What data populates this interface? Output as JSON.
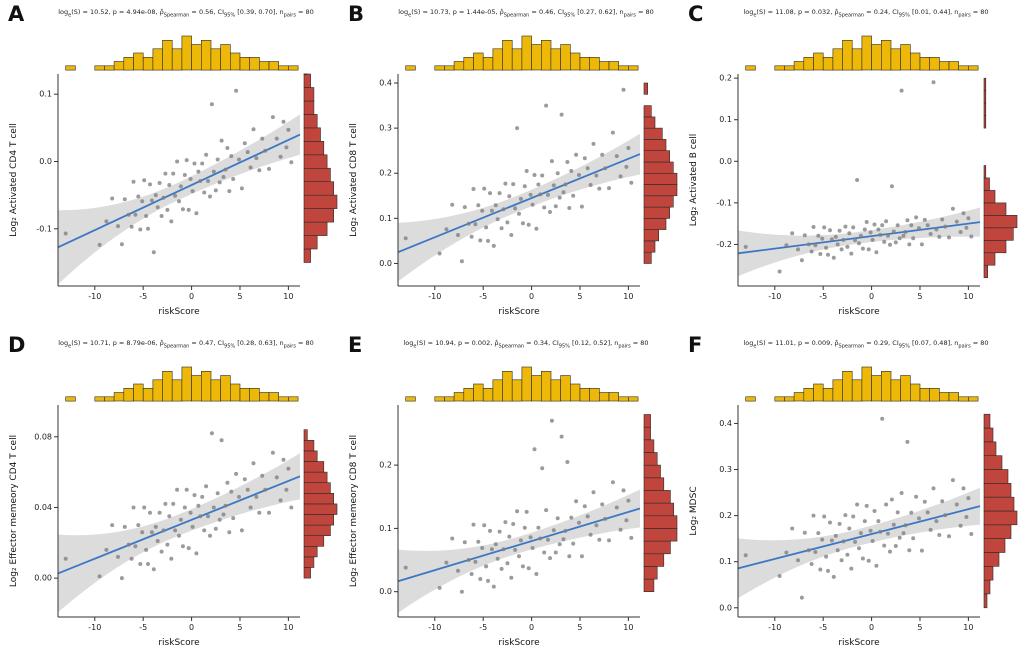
{
  "ui": {
    "stat_log": "log",
    "stat_log_sub": "e",
    "stat_s": "(S) = ",
    "stat_p": ", p = ",
    "stat_rho": ", ρ̂",
    "stat_rho_sub": "Spearman",
    "stat_eq": " = ",
    "stat_ci": ", CI",
    "stat_ci_sub": "95%",
    "stat_sp": " ",
    "stat_n": ", n",
    "stat_n_sub": "pairs",
    "stat_eq2": " = "
  },
  "colors": {
    "top_hist": "#EDB807",
    "right_hist": "#C0453C",
    "hist_stroke": "#2b2b2b",
    "point": "#7f7f7f",
    "line": "#3B78C4",
    "band": "#9a9a9a",
    "axis": "#333333"
  },
  "chart_data": {
    "type": "scatter",
    "x_label": "riskScore",
    "x_domain": [
      -13.8,
      11.2
    ],
    "x_ticks": [
      [
        -10,
        "-10"
      ],
      [
        -5,
        "-5"
      ],
      [
        0,
        "0"
      ],
      [
        5,
        "5"
      ],
      [
        10,
        "10"
      ]
    ],
    "riskScore": [
      -13.0,
      -9.5,
      -8.8,
      -8.2,
      -7.6,
      -7.2,
      -6.9,
      -6.5,
      -6.2,
      -6.0,
      -5.8,
      -5.5,
      -5.3,
      -5.1,
      -4.9,
      -4.7,
      -4.5,
      -4.3,
      -4.1,
      -3.9,
      -3.7,
      -3.5,
      -3.3,
      -3.1,
      -2.9,
      -2.7,
      -2.5,
      -2.3,
      -2.1,
      -1.9,
      -1.7,
      -1.5,
      -1.3,
      -1.1,
      -0.9,
      -0.7,
      -0.5,
      -0.3,
      -0.1,
      0.1,
      0.3,
      0.5,
      0.7,
      0.9,
      1.1,
      1.3,
      1.5,
      1.7,
      1.9,
      2.1,
      2.3,
      2.5,
      2.7,
      2.9,
      3.1,
      3.3,
      3.5,
      3.7,
      3.9,
      4.1,
      4.3,
      4.6,
      4.9,
      5.2,
      5.5,
      5.8,
      6.1,
      6.4,
      6.7,
      7.0,
      7.3,
      7.6,
      8.0,
      8.4,
      8.8,
      9.2,
      9.5,
      9.8,
      10.0,
      10.3
    ],
    "top_hist": {
      "start": -13,
      "bin_width": 1,
      "counts": [
        1,
        0,
        0,
        1,
        1,
        2,
        3,
        4,
        3,
        5,
        7,
        5,
        8,
        6,
        7,
        5,
        6,
        4,
        3,
        3,
        2,
        2,
        1,
        1
      ]
    },
    "panels": [
      {
        "letter": "A",
        "y_label": "Log₂ Activated CD4 T cell",
        "stats": {
          "logS": "10.52",
          "p": "4.94e-08",
          "rho": "0.56",
          "ci": "[0.39, 0.70]",
          "n": "80"
        },
        "y_domain": [
          -0.185,
          0.13
        ],
        "y_ticks": [
          [
            0.1,
            "0.1"
          ],
          [
            0.0,
            "0.0"
          ],
          [
            -0.1,
            "-0.1"
          ]
        ],
        "regression": {
          "intercept": -0.035,
          "slope": 0.0067
        },
        "band": {
          "center": -1.5,
          "w_mid": 0.013,
          "w_left": 0.055,
          "w_right": 0.03
        },
        "y": [
          -0.107,
          -0.124,
          -0.089,
          -0.055,
          -0.096,
          -0.123,
          -0.056,
          -0.079,
          -0.097,
          -0.03,
          -0.079,
          -0.052,
          -0.101,
          -0.059,
          -0.028,
          -0.081,
          -0.1,
          -0.034,
          -0.058,
          -0.135,
          -0.05,
          -0.068,
          -0.032,
          -0.081,
          -0.054,
          -0.018,
          -0.072,
          -0.035,
          -0.089,
          -0.018,
          -0.051,
          0.0,
          -0.059,
          -0.037,
          -0.071,
          -0.02,
          0.002,
          -0.072,
          -0.026,
          -0.044,
          -0.003,
          -0.077,
          -0.015,
          -0.029,
          -0.003,
          -0.046,
          0.01,
          -0.029,
          -0.052,
          0.085,
          -0.015,
          -0.043,
          0.003,
          -0.031,
          0.031,
          -0.023,
          -0.012,
          0.02,
          -0.044,
          0.008,
          -0.026,
          0.105,
          0.003,
          -0.04,
          0.027,
          0.014,
          -0.009,
          0.048,
          0.005,
          -0.013,
          0.034,
          0.016,
          -0.011,
          0.066,
          0.034,
          0.007,
          0.059,
          0.021,
          0.047,
          -0.001
        ],
        "right_hist": {
          "start": -0.15,
          "bin_width": 0.02,
          "counts": [
            2,
            4,
            7,
            9,
            10,
            9,
            8,
            7,
            6,
            5,
            4,
            3,
            3,
            2,
            1
          ]
        }
      },
      {
        "letter": "B",
        "y_label": "Log₂ Activated CD8 T cell",
        "stats": {
          "logS": "10.73",
          "p": "1.44e-05",
          "rho": "0.46",
          "ci": "[0.27, 0.62]",
          "n": "80"
        },
        "y_domain": [
          -0.05,
          0.42
        ],
        "y_ticks": [
          [
            0.0,
            "0.0"
          ],
          [
            0.1,
            "0.1"
          ],
          [
            0.2,
            "0.2"
          ],
          [
            0.3,
            "0.3"
          ],
          [
            0.4,
            "0.4"
          ]
        ],
        "regression": {
          "intercept": 0.145,
          "slope": 0.0087
        },
        "band": {
          "center": -1.5,
          "w_mid": 0.018,
          "w_left": 0.065,
          "w_right": 0.045
        },
        "y": [
          0.056,
          0.022,
          0.076,
          0.13,
          0.063,
          0.005,
          0.125,
          0.088,
          0.059,
          0.165,
          0.087,
          0.129,
          0.051,
          0.117,
          0.166,
          0.08,
          0.05,
          0.156,
          0.117,
          0.039,
          0.129,
          0.098,
          0.156,
          0.078,
          0.12,
          0.177,
          0.091,
          0.149,
          0.063,
          0.176,
          0.122,
          0.3,
          0.11,
          0.143,
          0.089,
          0.171,
          0.205,
          0.086,
          0.152,
          0.13,
          0.196,
          0.077,
          0.175,
          0.153,
          0.195,
          0.124,
          0.35,
          0.152,
          0.114,
          0.227,
          0.173,
          0.127,
          0.2,
          0.146,
          0.33,
          0.158,
          0.175,
          0.225,
          0.123,
          0.205,
          0.15,
          0.241,
          0.196,
          0.126,
          0.233,
          0.211,
          0.174,
          0.265,
          0.195,
          0.166,
          0.241,
          0.211,
          0.167,
          0.29,
          0.238,
          0.193,
          0.385,
          0.214,
          0.256,
          0.179
        ],
        "right_hist": {
          "start": 0.0,
          "bin_width": 0.025,
          "counts": [
            2,
            3,
            4,
            6,
            7,
            8,
            9,
            9,
            8,
            7,
            6,
            5,
            3,
            2,
            0,
            1
          ]
        }
      },
      {
        "letter": "C",
        "y_label": "Log₂ Activated B cell",
        "stats": {
          "logS": "11.08",
          "p": "0.032",
          "rho": "0.24",
          "ci": "[0.01, 0.44]",
          "n": "80"
        },
        "y_domain": [
          -0.3,
          0.21
        ],
        "y_ticks": [
          [
            0.2,
            "0.2"
          ],
          [
            0.1,
            "0.1"
          ],
          [
            0.0,
            "0.0"
          ],
          [
            -0.1,
            "-0.1"
          ],
          [
            -0.2,
            "-0.2"
          ]
        ],
        "regression": {
          "intercept": -0.18,
          "slope": 0.003
        },
        "band": {
          "center": -1.5,
          "w_mid": 0.014,
          "w_left": 0.055,
          "w_right": 0.035
        },
        "y": [
          -0.206,
          -0.265,
          -0.202,
          -0.173,
          -0.212,
          -0.238,
          -0.178,
          -0.2,
          -0.217,
          -0.158,
          -0.202,
          -0.179,
          -0.223,
          -0.186,
          -0.159,
          -0.208,
          -0.225,
          -0.166,
          -0.188,
          -0.232,
          -0.182,
          -0.2,
          -0.167,
          -0.212,
          -0.189,
          -0.157,
          -0.206,
          -0.173,
          -0.222,
          -0.159,
          -0.19,
          -0.045,
          -0.197,
          -0.179,
          -0.21,
          -0.164,
          -0.146,
          -0.212,
          -0.171,
          -0.189,
          -0.152,
          -0.219,
          -0.164,
          -0.177,
          -0.154,
          -0.194,
          -0.144,
          -0.179,
          -0.201,
          -0.06,
          -0.169,
          -0.195,
          -0.154,
          -0.185,
          0.17,
          -0.179,
          -0.17,
          -0.142,
          -0.2,
          -0.154,
          -0.185,
          -0.135,
          -0.161,
          -0.2,
          -0.141,
          -0.154,
          -0.175,
          0.19,
          -0.164,
          -0.182,
          -0.14,
          -0.157,
          -0.183,
          -0.114,
          -0.145,
          -0.17,
          -0.125,
          -0.16,
          -0.137,
          -0.181
        ],
        "right_hist": {
          "start": -0.28,
          "bin_width": 0.03,
          "counts": [
            2,
            6,
            12,
            16,
            18,
            12,
            6,
            3,
            1,
            0,
            0,
            0,
            1,
            1,
            1,
            1
          ]
        }
      },
      {
        "letter": "D",
        "y_label": "Log₂ Effector memeory CD4 T cell",
        "stats": {
          "logS": "10.71",
          "p": "8.79e-06",
          "rho": "0.47",
          "ci": "[0.28, 0.63]",
          "n": "80"
        },
        "y_domain": [
          -0.022,
          0.098
        ],
        "y_ticks": [
          [
            0.0,
            "0.00"
          ],
          [
            0.04,
            "0.04"
          ],
          [
            0.08,
            "0.08"
          ]
        ],
        "regression": {
          "intercept": 0.033,
          "slope": 0.0022
        },
        "band": {
          "center": -1.5,
          "w_mid": 0.006,
          "w_left": 0.022,
          "w_right": 0.013
        },
        "y": [
          0.011,
          0.001,
          0.016,
          0.03,
          0.012,
          0.0,
          0.029,
          0.019,
          0.011,
          0.04,
          0.018,
          0.03,
          0.008,
          0.026,
          0.04,
          0.016,
          0.008,
          0.037,
          0.026,
          0.005,
          0.029,
          0.021,
          0.037,
          0.015,
          0.027,
          0.042,
          0.019,
          0.035,
          0.011,
          0.042,
          0.027,
          0.05,
          0.024,
          0.033,
          0.018,
          0.04,
          0.05,
          0.017,
          0.037,
          0.029,
          0.047,
          0.014,
          0.041,
          0.035,
          0.046,
          0.027,
          0.052,
          0.035,
          0.024,
          0.082,
          0.04,
          0.028,
          0.048,
          0.033,
          0.078,
          0.036,
          0.041,
          0.054,
          0.026,
          0.049,
          0.034,
          0.059,
          0.046,
          0.027,
          0.056,
          0.05,
          0.04,
          0.065,
          0.046,
          0.037,
          0.058,
          0.05,
          0.037,
          0.071,
          0.057,
          0.044,
          0.067,
          0.05,
          0.062,
          0.04
        ],
        "right_hist": {
          "start": 0.0,
          "bin_width": 0.006,
          "counts": [
            2,
            3,
            4,
            6,
            8,
            9,
            10,
            9,
            8,
            7,
            6,
            4,
            3,
            1
          ]
        }
      },
      {
        "letter": "E",
        "y_label": "Log₂ Effector memeory CD8 T cell",
        "stats": {
          "logS": "10.94",
          "p": "0.002",
          "rho": "0.34",
          "ci": "[0.12, 0.52]",
          "n": "80"
        },
        "y_domain": [
          -0.04,
          0.295
        ],
        "y_ticks": [
          [
            0.0,
            "0.0"
          ],
          [
            0.1,
            "0.1"
          ],
          [
            0.2,
            "0.2"
          ]
        ],
        "regression": {
          "intercept": 0.08,
          "slope": 0.0046
        },
        "band": {
          "center": -1.5,
          "w_mid": 0.013,
          "w_left": 0.05,
          "w_right": 0.03
        },
        "y": [
          0.038,
          0.006,
          0.046,
          0.084,
          0.033,
          0.0,
          0.078,
          0.05,
          0.028,
          0.106,
          0.047,
          0.079,
          0.02,
          0.069,
          0.105,
          0.04,
          0.017,
          0.096,
          0.067,
          0.008,
          0.075,
          0.052,
          0.095,
          0.036,
          0.067,
          0.11,
          0.045,
          0.087,
          0.022,
          0.107,
          0.066,
          0.127,
          0.056,
          0.081,
          0.04,
          0.101,
          0.126,
          0.037,
          0.086,
          0.069,
          0.225,
          0.028,
          0.101,
          0.084,
          0.195,
          0.062,
          0.129,
          0.082,
          0.053,
          0.27,
          0.097,
          0.062,
          0.116,
          0.075,
          0.245,
          0.083,
          0.096,
          0.205,
          0.056,
          0.117,
          0.076,
          0.143,
          0.109,
          0.056,
          0.135,
          0.119,
          0.09,
          0.157,
          0.105,
          0.082,
          0.138,
          0.115,
          0.081,
          0.173,
          0.133,
          0.098,
          0.16,
          0.113,
          0.144,
          0.085
        ],
        "right_hist": {
          "start": 0.0,
          "bin_width": 0.02,
          "counts": [
            3,
            4,
            6,
            8,
            10,
            10,
            9,
            8,
            6,
            5,
            4,
            3,
            2,
            2
          ]
        }
      },
      {
        "letter": "F",
        "y_label": "Log₂ MDSC",
        "stats": {
          "logS": "11.01",
          "p": "0.009",
          "rho": "0.29",
          "ci": "[0.07, 0.48]",
          "n": "80"
        },
        "y_domain": [
          -0.02,
          0.44
        ],
        "y_ticks": [
          [
            0.0,
            "0.0"
          ],
          [
            0.1,
            "0.1"
          ],
          [
            0.2,
            "0.2"
          ],
          [
            0.3,
            "0.3"
          ],
          [
            0.4,
            "0.4"
          ]
        ],
        "regression": {
          "intercept": 0.16,
          "slope": 0.0054
        },
        "band": {
          "center": -1.5,
          "w_mid": 0.018,
          "w_left": 0.065,
          "w_right": 0.04
        },
        "y": [
          0.114,
          0.069,
          0.12,
          0.172,
          0.103,
          0.022,
          0.163,
          0.125,
          0.095,
          0.2,
          0.121,
          0.162,
          0.083,
          0.148,
          0.198,
          0.111,
          0.08,
          0.185,
          0.146,
          0.067,
          0.156,
          0.125,
          0.182,
          0.103,
          0.144,
          0.201,
          0.115,
          0.172,
          0.085,
          0.198,
          0.143,
          0.224,
          0.129,
          0.162,
          0.107,
          0.188,
          0.221,
          0.102,
          0.167,
          0.145,
          0.21,
          0.091,
          0.188,
          0.165,
          0.41,
          0.135,
          0.224,
          0.161,
          0.122,
          0.235,
          0.18,
          0.134,
          0.207,
          0.152,
          0.249,
          0.162,
          0.179,
          0.36,
          0.125,
          0.206,
          0.151,
          0.241,
          0.194,
          0.124,
          0.23,
          0.207,
          0.169,
          0.259,
          0.188,
          0.158,
          0.231,
          0.201,
          0.155,
          0.277,
          0.224,
          0.178,
          0.259,
          0.197,
          0.238,
          0.16
        ],
        "right_hist": {
          "start": 0.0,
          "bin_width": 0.03,
          "counts": [
            1,
            2,
            3,
            5,
            7,
            9,
            11,
            10,
            9,
            8,
            6,
            4,
            3,
            2
          ]
        }
      }
    ]
  }
}
